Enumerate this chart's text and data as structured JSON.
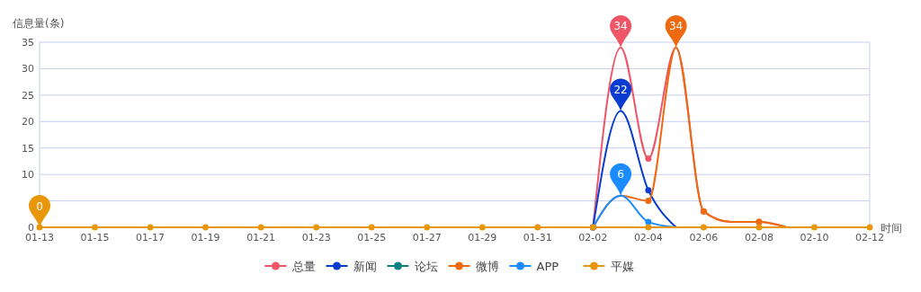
{
  "chart_data": {
    "type": "line",
    "ylabel": "信息量(条)",
    "xlabel": "时间",
    "categories": [
      "01-13",
      null,
      "01-15",
      null,
      "01-17",
      null,
      "01-19",
      null,
      "01-21",
      null,
      "01-23",
      null,
      "01-25",
      null,
      "01-27",
      null,
      "01-29",
      null,
      "01-31",
      null,
      "02-02",
      null,
      "02-04",
      null,
      "02-06",
      null,
      "02-08",
      null,
      "02-10",
      null,
      "02-12"
    ],
    "series": [
      {
        "name": "总量",
        "color": "#ee5566",
        "values": [
          null,
          null,
          null,
          null,
          null,
          null,
          null,
          null,
          null,
          null,
          null,
          null,
          null,
          null,
          null,
          null,
          null,
          null,
          null,
          null,
          0,
          34,
          13,
          34,
          3,
          1,
          1,
          0,
          null,
          null,
          null
        ],
        "value_labels": [
          null,
          null,
          null,
          null,
          null,
          null,
          null,
          null,
          null,
          null,
          null,
          null,
          null,
          null,
          null,
          null,
          null,
          null,
          null,
          null,
          null,
          "34",
          null,
          null,
          null,
          null,
          null,
          null,
          null,
          null,
          null
        ]
      },
      {
        "name": "新闻",
        "color": "#0a3cd2",
        "values": [
          null,
          null,
          null,
          null,
          null,
          null,
          null,
          null,
          null,
          null,
          null,
          null,
          null,
          null,
          null,
          null,
          null,
          null,
          null,
          null,
          0,
          22,
          7,
          0,
          null,
          null,
          null,
          null,
          null,
          null,
          null
        ],
        "value_labels": [
          null,
          null,
          null,
          null,
          null,
          null,
          null,
          null,
          null,
          null,
          null,
          null,
          null,
          null,
          null,
          null,
          null,
          null,
          null,
          null,
          null,
          "22",
          null,
          null,
          null,
          null,
          null,
          null,
          null,
          null,
          null
        ]
      },
      {
        "name": "论坛",
        "color": "#0b7f86",
        "values": [
          null,
          null,
          null,
          null,
          null,
          null,
          null,
          null,
          null,
          null,
          null,
          null,
          null,
          null,
          null,
          null,
          null,
          null,
          null,
          null,
          null,
          null,
          null,
          null,
          null,
          null,
          null,
          null,
          null,
          null,
          null
        ]
      },
      {
        "name": "微博",
        "color": "#ee6a10",
        "values": [
          null,
          null,
          null,
          null,
          null,
          null,
          null,
          null,
          null,
          null,
          null,
          null,
          null,
          null,
          null,
          null,
          null,
          null,
          null,
          null,
          0,
          6,
          5,
          34,
          3,
          1,
          1,
          0,
          null,
          null,
          null
        ],
        "value_labels": [
          null,
          null,
          null,
          null,
          null,
          null,
          null,
          null,
          null,
          null,
          null,
          null,
          null,
          null,
          null,
          null,
          null,
          null,
          null,
          null,
          null,
          null,
          null,
          "34",
          null,
          null,
          null,
          null,
          null,
          null,
          null
        ]
      },
      {
        "color": "#2fbf71",
        "values": [
          null,
          null,
          null,
          null,
          null,
          null,
          null,
          null,
          null,
          null,
          null,
          null,
          null,
          null,
          null,
          null,
          null,
          null,
          null,
          null,
          null,
          null,
          null,
          null,
          null,
          null,
          null,
          null,
          null,
          null,
          null
        ]
      },
      {
        "name": "APP",
        "color": "#1a8cff",
        "values": [
          null,
          null,
          null,
          null,
          null,
          null,
          null,
          null,
          null,
          null,
          null,
          null,
          null,
          null,
          null,
          null,
          null,
          null,
          null,
          null,
          0,
          6,
          1,
          0,
          null,
          null,
          null,
          null,
          null,
          null,
          null
        ],
        "value_labels": [
          null,
          null,
          null,
          null,
          null,
          null,
          null,
          null,
          null,
          null,
          null,
          null,
          null,
          null,
          null,
          null,
          null,
          null,
          null,
          null,
          null,
          "6",
          null,
          null,
          null,
          null,
          null,
          null,
          null,
          null,
          null
        ]
      },
      {
        "name": "平媒",
        "color": "#e8960c",
        "values": [
          0,
          0,
          0,
          0,
          0,
          0,
          0,
          0,
          0,
          0,
          0,
          0,
          0,
          0,
          0,
          0,
          0,
          0,
          0,
          0,
          0,
          0,
          0,
          0,
          0,
          0,
          0,
          0,
          0,
          0,
          0
        ],
        "value_labels": [
          "0",
          null,
          null,
          null,
          null,
          null,
          null,
          null,
          null,
          null,
          null,
          null,
          null,
          null,
          null,
          null,
          null,
          null,
          null,
          null,
          null,
          null,
          null,
          null,
          null,
          null,
          null,
          null,
          null,
          null,
          null
        ]
      }
    ],
    "ylim": [
      0,
      35
    ],
    "yticks": [
      0,
      {
        "value": 5,
        "label": null
      },
      10,
      15,
      20,
      25,
      30,
      35
    ],
    "grid": "y",
    "legend": "bottom",
    "marker": "circle"
  }
}
